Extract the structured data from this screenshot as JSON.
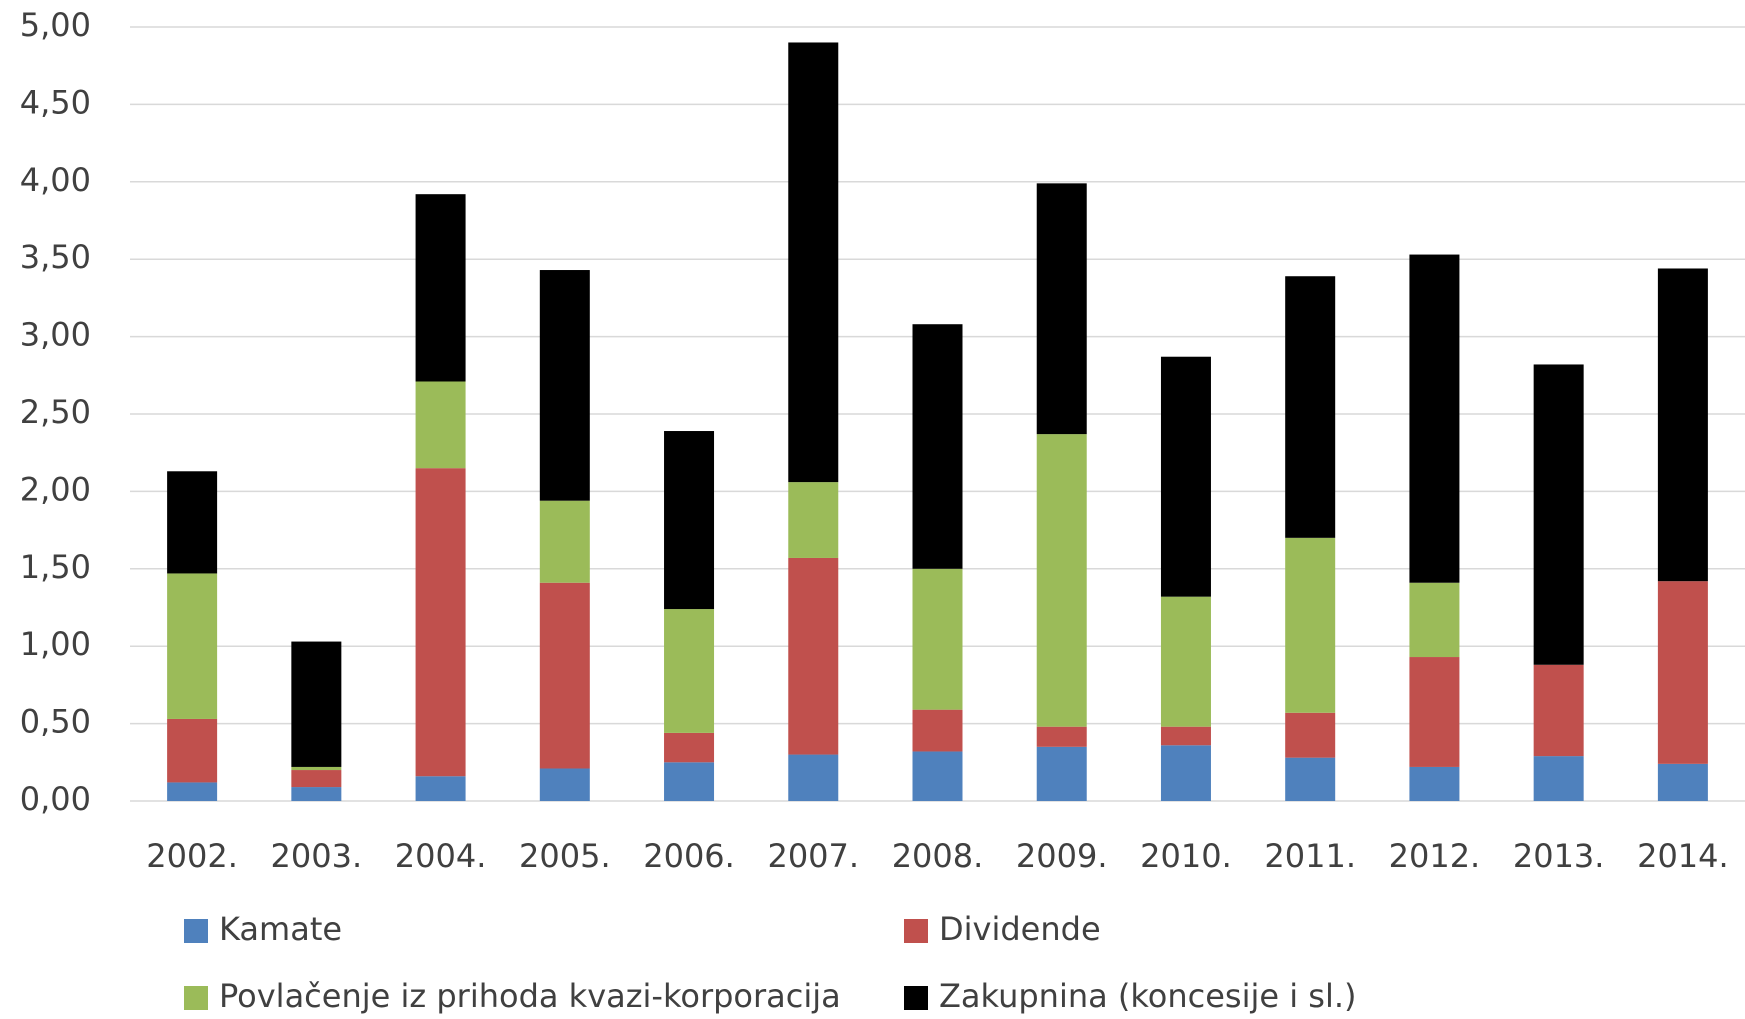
{
  "chart_data": {
    "type": "stacked_bar",
    "categories": [
      "2002.",
      "2003.",
      "2004.",
      "2005.",
      "2006.",
      "2007.",
      "2008.",
      "2009.",
      "2010.",
      "2011.",
      "2012.",
      "2013.",
      "2014."
    ],
    "series": [
      {
        "name": "Kamate",
        "color": "#4f81bd",
        "values": [
          0.12,
          0.09,
          0.16,
          0.21,
          0.25,
          0.3,
          0.32,
          0.35,
          0.36,
          0.28,
          0.22,
          0.29,
          0.24
        ]
      },
      {
        "name": "Dividende",
        "color": "#c0504d",
        "values": [
          0.41,
          0.11,
          1.99,
          1.2,
          0.19,
          1.27,
          0.27,
          0.13,
          0.12,
          0.29,
          0.71,
          0.59,
          1.18
        ]
      },
      {
        "name": "Povlačenje iz prihoda kvazi-korporacija",
        "color": "#9bbb59",
        "values": [
          0.94,
          0.02,
          0.56,
          0.53,
          0.8,
          0.49,
          0.91,
          1.89,
          0.84,
          1.13,
          0.48,
          0,
          0
        ]
      },
      {
        "name": "Zakupnina (koncesije i sl.)",
        "color": "#000000",
        "values": [
          0.66,
          0.81,
          1.21,
          1.49,
          1.15,
          2.84,
          1.58,
          1.62,
          1.55,
          1.69,
          2.12,
          1.94,
          2.02
        ]
      }
    ],
    "ylim": [
      0,
      5
    ],
    "yticks": [
      {
        "value": 0,
        "label": "0,00"
      },
      {
        "value": 0.5,
        "label": "0,50"
      },
      {
        "value": 1,
        "label": "1,00"
      },
      {
        "value": 1.5,
        "label": "1,50"
      },
      {
        "value": 2,
        "label": "2,00"
      },
      {
        "value": 2.5,
        "label": "2,50"
      },
      {
        "value": 3,
        "label": "3,00"
      },
      {
        "value": 3.5,
        "label": "3,50"
      },
      {
        "value": 4,
        "label": "4,00"
      },
      {
        "value": 4.5,
        "label": "4,50"
      },
      {
        "value": 5,
        "label": "5,00"
      }
    ],
    "grid": true,
    "legend": "bottom"
  }
}
